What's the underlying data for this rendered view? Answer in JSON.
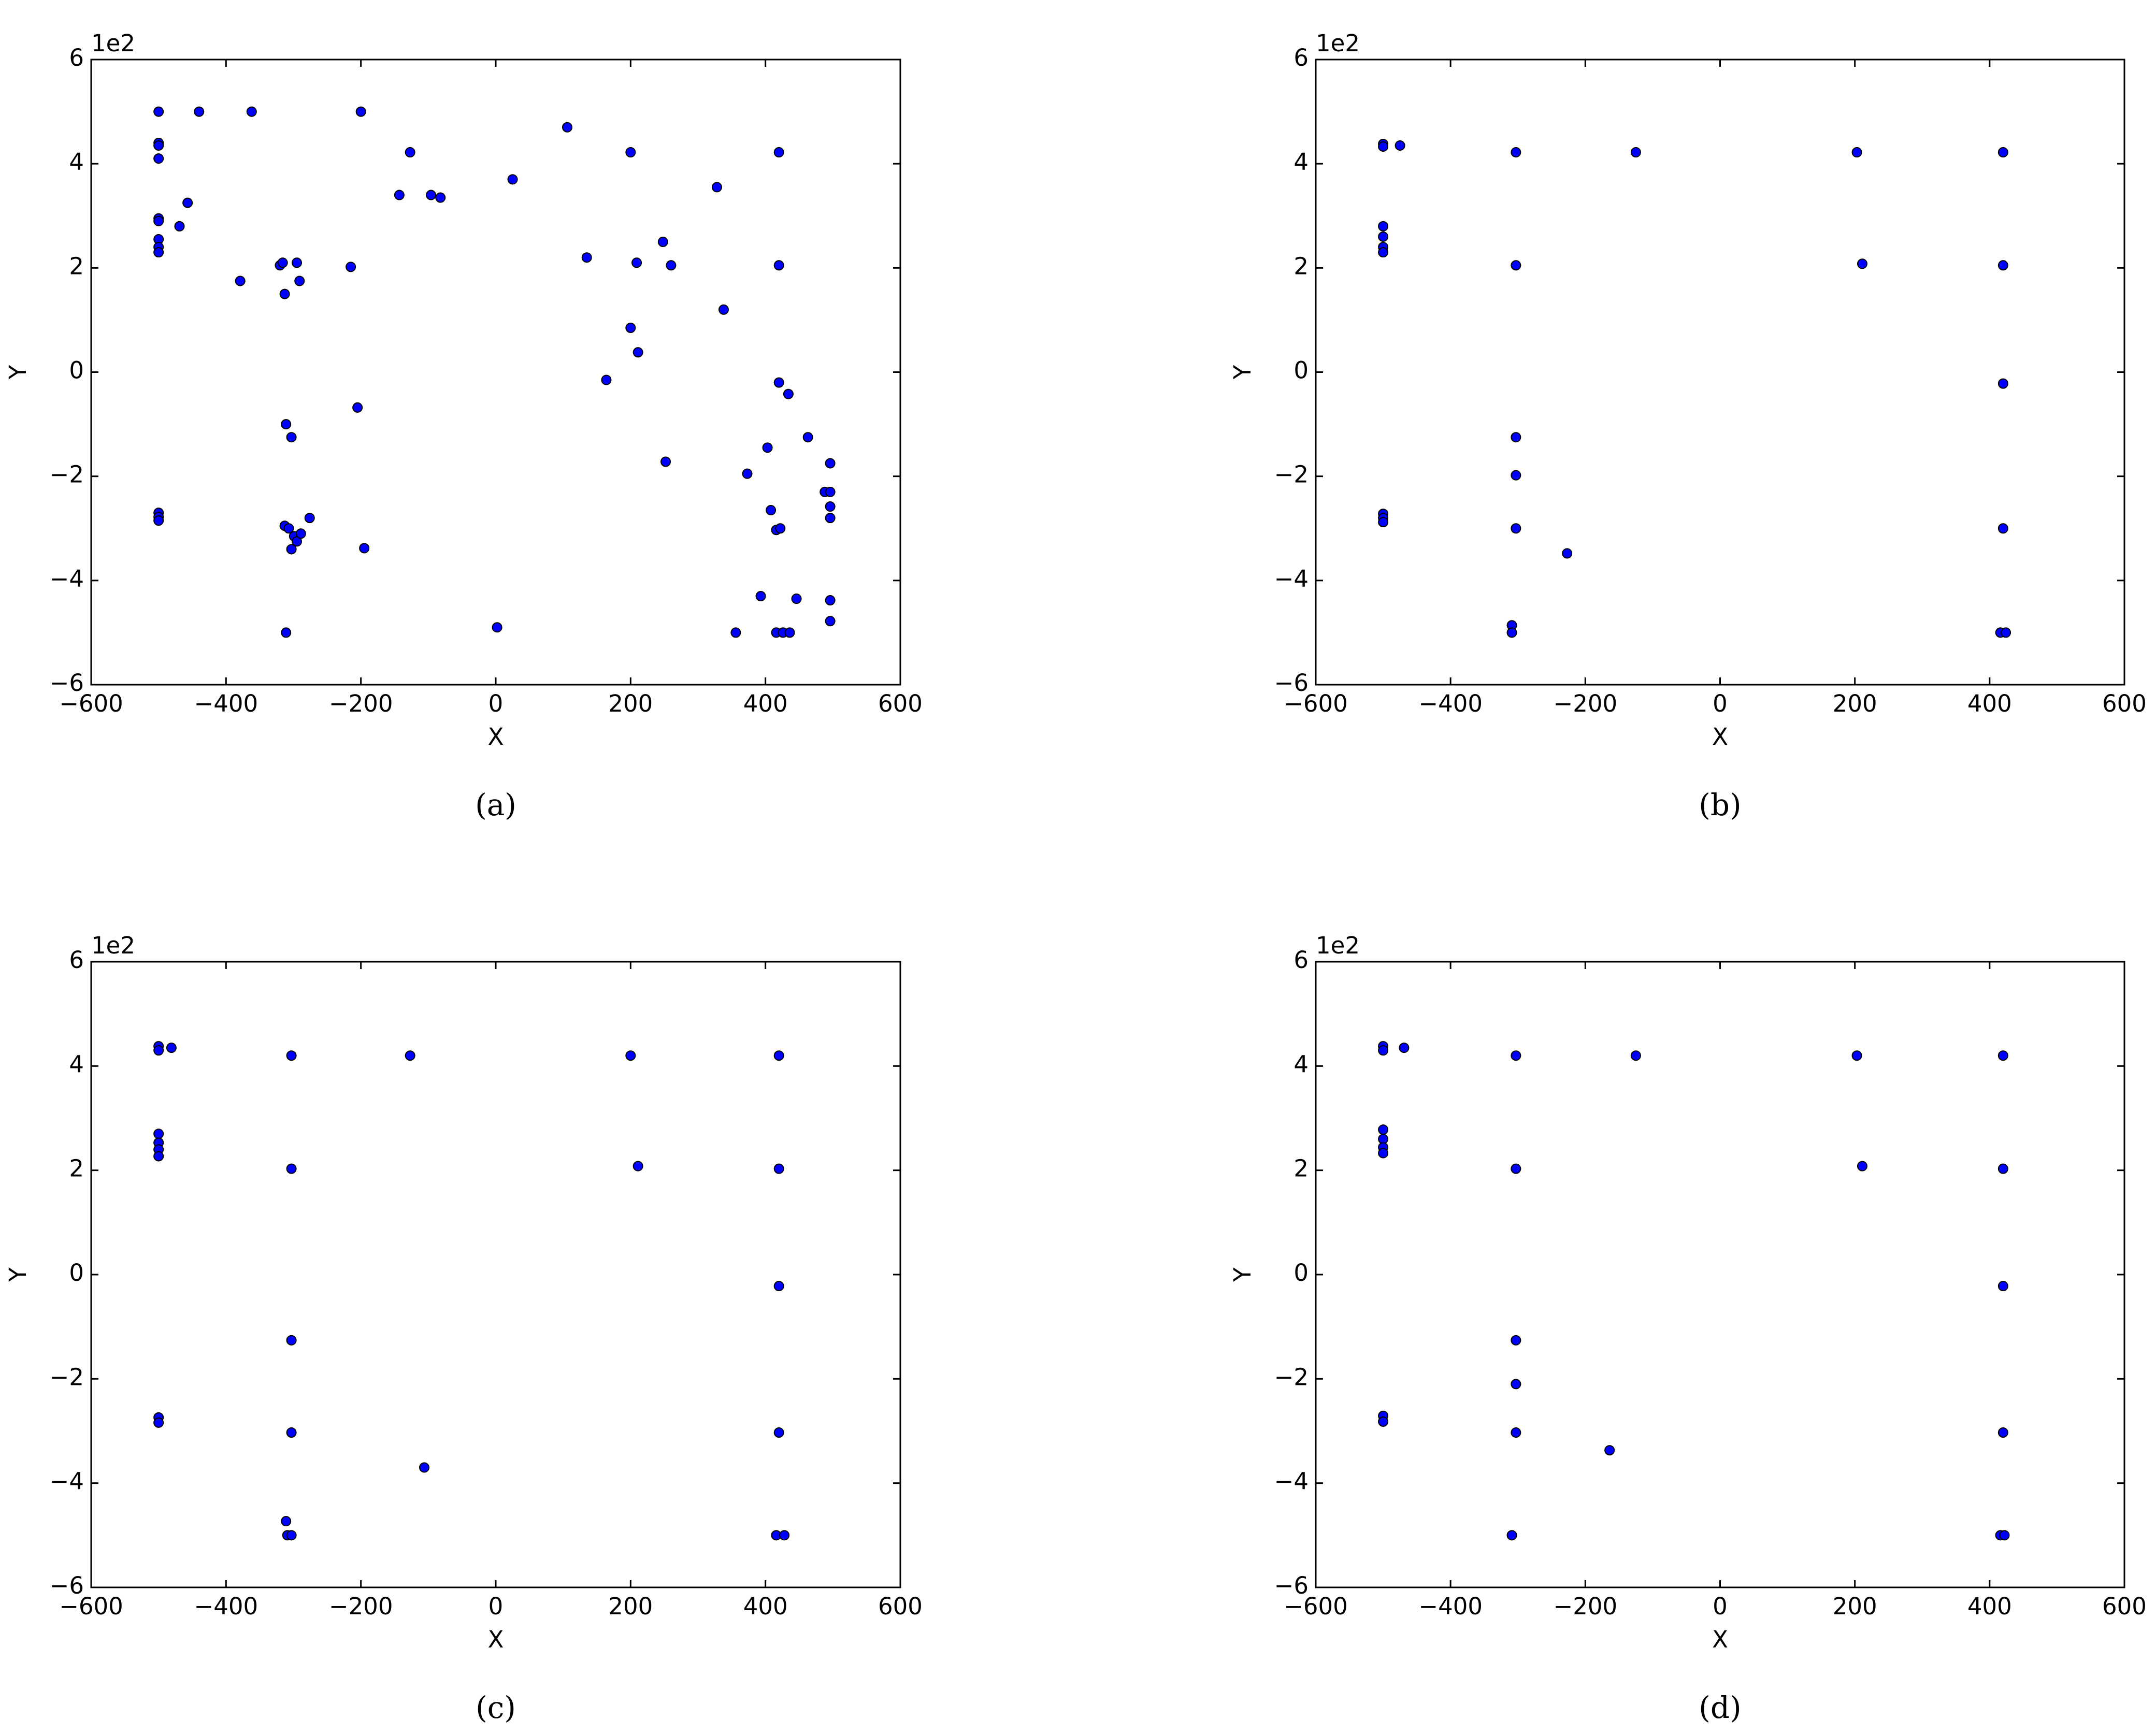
{
  "chart_data": [
    {
      "type": "scatter",
      "caption": "(a)",
      "x_label": "X",
      "y_label": "Y",
      "y_offset_label": "1e2",
      "color": "#0000ff",
      "xlim": [
        -600,
        600
      ],
      "ylim": [
        -6,
        6
      ],
      "xticks": [
        {
          "value": -600,
          "label": "−600"
        },
        {
          "value": -400,
          "label": "−400"
        },
        {
          "value": -200,
          "label": "−200"
        },
        0,
        200,
        400,
        600
      ],
      "yticks": [
        {
          "value": -6,
          "label": "−6"
        },
        {
          "value": -4,
          "label": "−4"
        },
        {
          "value": -2,
          "label": "−2"
        },
        0,
        2,
        4,
        6
      ],
      "x": [
        -500,
        -500,
        -500,
        -500,
        -500,
        -500,
        -500,
        -500,
        -500,
        -469,
        -457,
        -440,
        -362,
        -379,
        -320,
        -316,
        -313,
        -295,
        -291,
        -215,
        -200,
        -127,
        -143,
        -96,
        -82,
        25,
        106,
        200,
        135,
        209,
        248,
        260,
        328,
        338,
        200,
        211,
        164,
        420,
        420,
        420,
        434,
        463,
        403,
        496,
        373,
        252,
        -205,
        -311,
        -303,
        -500,
        -500,
        -500,
        -313,
        -307,
        -299,
        -295,
        -303,
        -289,
        -276,
        -195,
        488,
        496,
        496,
        496,
        408,
        416,
        422,
        393,
        446,
        496,
        496,
        356,
        416,
        426,
        436,
        -311,
        2
      ],
      "values": [
        5.0,
        4.4,
        4.35,
        4.1,
        2.95,
        2.9,
        2.55,
        2.4,
        2.3,
        2.8,
        3.25,
        5.0,
        5.0,
        1.75,
        2.05,
        2.1,
        1.5,
        2.1,
        1.75,
        2.02,
        5.0,
        4.22,
        3.4,
        3.4,
        3.35,
        3.7,
        4.7,
        4.22,
        2.2,
        2.1,
        2.5,
        2.05,
        3.55,
        1.2,
        0.85,
        0.38,
        -0.15,
        4.22,
        2.05,
        -0.2,
        -0.42,
        -1.25,
        -1.45,
        -1.75,
        -1.95,
        -1.72,
        -0.68,
        -1.0,
        -1.25,
        -2.7,
        -2.78,
        -2.85,
        -2.95,
        -3.0,
        -3.15,
        -3.25,
        -3.4,
        -3.1,
        -2.8,
        -3.38,
        -2.3,
        -2.3,
        -2.58,
        -2.8,
        -2.65,
        -3.03,
        -3.0,
        -4.3,
        -4.35,
        -4.38,
        -4.78,
        -5.0,
        -5.0,
        -5.0,
        -5.0,
        -5.0,
        -4.9
      ]
    },
    {
      "type": "scatter",
      "caption": "(b)",
      "x_label": "X",
      "y_label": "Y",
      "y_offset_label": "1e2",
      "color": "#0000ff",
      "xlim": [
        -600,
        600
      ],
      "ylim": [
        -6,
        6
      ],
      "xticks": [
        {
          "value": -600,
          "label": "−600"
        },
        {
          "value": -400,
          "label": "−400"
        },
        {
          "value": -200,
          "label": "−200"
        },
        0,
        200,
        400,
        600
      ],
      "yticks": [
        {
          "value": -6,
          "label": "−6"
        },
        {
          "value": -4,
          "label": "−4"
        },
        {
          "value": -2,
          "label": "−2"
        },
        0,
        2,
        4,
        6
      ],
      "x": [
        -500,
        -500,
        -475,
        -303,
        -125,
        203,
        420,
        -500,
        -500,
        -500,
        -500,
        -303,
        211,
        420,
        420,
        -303,
        -303,
        -500,
        -500,
        -500,
        -303,
        420,
        -227,
        -309,
        -309,
        416,
        424
      ],
      "values": [
        4.38,
        4.33,
        4.35,
        4.22,
        4.22,
        4.22,
        4.22,
        2.8,
        2.6,
        2.4,
        2.3,
        2.05,
        2.08,
        2.05,
        -0.22,
        -1.25,
        -1.98,
        -2.72,
        -2.8,
        -2.88,
        -3.0,
        -3.0,
        -3.48,
        -4.86,
        -5.0,
        -5.0,
        -5.0
      ]
    },
    {
      "type": "scatter",
      "caption": "(c)",
      "x_label": "X",
      "y_label": "Y",
      "y_offset_label": "1e2",
      "color": "#0000ff",
      "xlim": [
        -600,
        600
      ],
      "ylim": [
        -6,
        6
      ],
      "xticks": [
        {
          "value": -600,
          "label": "−600"
        },
        {
          "value": -400,
          "label": "−400"
        },
        {
          "value": -200,
          "label": "−200"
        },
        0,
        200,
        400,
        600
      ],
      "yticks": [
        {
          "value": -6,
          "label": "−6"
        },
        {
          "value": -4,
          "label": "−4"
        },
        {
          "value": -2,
          "label": "−2"
        },
        0,
        2,
        4,
        6
      ],
      "x": [
        -500,
        -500,
        -481,
        -303,
        -127,
        200,
        420,
        -500,
        -500,
        -500,
        -500,
        -303,
        211,
        420,
        420,
        -303,
        -500,
        -500,
        -303,
        420,
        -106,
        -311,
        -309,
        -303,
        416,
        428
      ],
      "values": [
        4.38,
        4.3,
        4.35,
        4.2,
        4.2,
        4.2,
        4.2,
        2.7,
        2.53,
        2.4,
        2.27,
        2.03,
        2.08,
        2.03,
        -0.22,
        -1.26,
        -2.74,
        -2.84,
        -3.03,
        -3.03,
        -3.7,
        -4.73,
        -5.0,
        -5.0,
        -5.0,
        -5.0
      ]
    },
    {
      "type": "scatter",
      "caption": "(d)",
      "x_label": "X",
      "y_label": "Y",
      "y_offset_label": "1e2",
      "color": "#0000ff",
      "xlim": [
        -600,
        600
      ],
      "ylim": [
        -6,
        6
      ],
      "xticks": [
        {
          "value": -600,
          "label": "−600"
        },
        {
          "value": -400,
          "label": "−400"
        },
        {
          "value": -200,
          "label": "−200"
        },
        0,
        200,
        400,
        600
      ],
      "yticks": [
        {
          "value": -6,
          "label": "−6"
        },
        {
          "value": -4,
          "label": "−4"
        },
        {
          "value": -2,
          "label": "−2"
        },
        0,
        2,
        4,
        6
      ],
      "x": [
        -500,
        -500,
        -469,
        -303,
        -125,
        203,
        420,
        -500,
        -500,
        -500,
        -500,
        -303,
        211,
        420,
        420,
        -303,
        -303,
        -500,
        -500,
        -303,
        420,
        -164,
        -309,
        416,
        422
      ],
      "values": [
        4.38,
        4.3,
        4.35,
        4.2,
        4.2,
        4.2,
        4.2,
        2.78,
        2.6,
        2.44,
        2.33,
        2.03,
        2.08,
        2.03,
        -0.22,
        -1.26,
        -2.1,
        -2.71,
        -2.82,
        -3.03,
        -3.03,
        -3.37,
        -5.0,
        -5.0,
        -5.0
      ]
    }
  ]
}
